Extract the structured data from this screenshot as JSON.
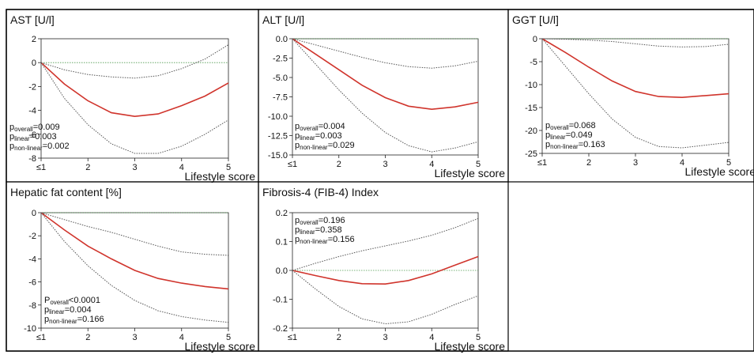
{
  "x_axis_label": "Lifestyle score",
  "x_tick_labels": [
    "≤1",
    "2",
    "3",
    "4",
    "5"
  ],
  "colors": {
    "estimate": "#d0342c",
    "ci": "#555555",
    "reference": "#4f9a4f",
    "frame": "#000000"
  },
  "chart_data": [
    {
      "type": "line",
      "title": "AST [U/l]",
      "xlabel": "Lifestyle score",
      "xlim": [
        1,
        5
      ],
      "ylim": [
        -8,
        2
      ],
      "y_ticks": [
        -8,
        -6,
        -4,
        -2,
        0,
        2
      ],
      "y_tick_labels": [
        "-8",
        "-6",
        "-4",
        "-2",
        "0",
        "2"
      ],
      "x": [
        1,
        1.5,
        2,
        2.5,
        3,
        3.5,
        4,
        4.5,
        5
      ],
      "series": [
        {
          "role": "estimate",
          "values": [
            0,
            -1.8,
            -3.2,
            -4.2,
            -4.5,
            -4.3,
            -3.6,
            -2.8,
            -1.7
          ]
        },
        {
          "role": "ci-upper",
          "values": [
            0,
            -0.6,
            -1.0,
            -1.2,
            -1.3,
            -1.1,
            -0.5,
            0.3,
            1.5
          ]
        },
        {
          "role": "ci-lower",
          "values": [
            0,
            -3.0,
            -5.2,
            -6.8,
            -7.6,
            -7.6,
            -7.0,
            -6.0,
            -4.8
          ]
        }
      ],
      "reference_line": 0,
      "pvalues": [
        {
          "prefix": "p",
          "sub": "overall",
          "value": "=0.009"
        },
        {
          "prefix": "p",
          "sub": "linear",
          "value": "=0.003"
        },
        {
          "prefix": "p",
          "sub": "non-linear",
          "value": "=0.002"
        }
      ]
    },
    {
      "type": "line",
      "title": "ALT [U/l]",
      "xlabel": "Lifestyle score",
      "xlim": [
        1,
        5
      ],
      "ylim": [
        -15,
        0
      ],
      "y_ticks": [
        -15,
        -12.5,
        -10,
        -7.5,
        -5,
        -2.5,
        0
      ],
      "y_tick_labels": [
        "-15.0",
        "-12.5",
        "-10.0",
        "-7.5",
        "-5.0",
        "-2.5",
        "0.0"
      ],
      "x": [
        1,
        1.5,
        2,
        2.5,
        3,
        3.5,
        4,
        4.5,
        5
      ],
      "series": [
        {
          "role": "estimate",
          "values": [
            0,
            -2.0,
            -4.0,
            -6.0,
            -7.6,
            -8.7,
            -9.1,
            -8.8,
            -8.2
          ]
        },
        {
          "role": "ci-upper",
          "values": [
            0,
            -0.8,
            -1.6,
            -2.4,
            -3.1,
            -3.6,
            -3.8,
            -3.5,
            -2.9
          ]
        },
        {
          "role": "ci-lower",
          "values": [
            0,
            -3.3,
            -6.6,
            -9.6,
            -12.1,
            -13.8,
            -14.6,
            -14.1,
            -13.3
          ]
        }
      ],
      "reference_line": 0,
      "pvalues": [
        {
          "prefix": "p",
          "sub": "overall",
          "value": "=0.004"
        },
        {
          "prefix": "p",
          "sub": "linear",
          "value": "=0.003"
        },
        {
          "prefix": "p",
          "sub": "non-linear",
          "value": "=0.029"
        }
      ]
    },
    {
      "type": "line",
      "title": "GGT [U/l]",
      "xlabel": "Lifestyle score",
      "xlim": [
        1,
        5
      ],
      "ylim": [
        -25,
        0
      ],
      "y_ticks": [
        -25,
        -20,
        -15,
        -10,
        -5,
        0
      ],
      "y_tick_labels": [
        "-25",
        "-20",
        "-15",
        "-10",
        "-5",
        "0"
      ],
      "x": [
        1,
        1.5,
        2,
        2.5,
        3,
        3.5,
        4,
        4.5,
        5
      ],
      "series": [
        {
          "role": "estimate",
          "values": [
            0,
            -3.0,
            -6.2,
            -9.2,
            -11.5,
            -12.6,
            -12.8,
            -12.4,
            -12.0
          ]
        },
        {
          "role": "ci-upper",
          "values": [
            0,
            -0.1,
            -0.3,
            -0.6,
            -1.1,
            -1.6,
            -1.8,
            -1.7,
            -1.2
          ]
        },
        {
          "role": "ci-lower",
          "values": [
            0,
            -6.0,
            -12.0,
            -17.5,
            -21.5,
            -23.5,
            -23.8,
            -23.2,
            -22.6
          ]
        }
      ],
      "reference_line": 0,
      "pvalues": [
        {
          "prefix": "p",
          "sub": "overall",
          "value": "=0.068"
        },
        {
          "prefix": "p",
          "sub": "linear",
          "value": "=0.049"
        },
        {
          "prefix": "p",
          "sub": "non-linear",
          "value": "=0.163"
        }
      ]
    },
    {
      "type": "line",
      "title": "Hepatic fat content [%]",
      "xlabel": "Lifestyle score",
      "xlim": [
        1,
        5
      ],
      "ylim": [
        -10,
        0
      ],
      "y_ticks": [
        -10,
        -8,
        -6,
        -4,
        -2,
        0
      ],
      "y_tick_labels": [
        "-10",
        "-8",
        "-6",
        "-4",
        "-2",
        "0"
      ],
      "x": [
        1,
        1.5,
        2,
        2.5,
        3,
        3.5,
        4,
        4.5,
        5
      ],
      "series": [
        {
          "role": "estimate",
          "values": [
            0,
            -1.5,
            -2.9,
            -4.0,
            -5.0,
            -5.7,
            -6.1,
            -6.4,
            -6.6
          ]
        },
        {
          "role": "ci-upper",
          "values": [
            0,
            -0.6,
            -1.2,
            -1.7,
            -2.3,
            -2.9,
            -3.4,
            -3.6,
            -3.7
          ]
        },
        {
          "role": "ci-lower",
          "values": [
            0,
            -2.5,
            -4.6,
            -6.3,
            -7.6,
            -8.5,
            -9.0,
            -9.3,
            -9.5
          ]
        }
      ],
      "reference_line": 0,
      "pvalues": [
        {
          "prefix": "P",
          "sub": "overall",
          "value": "<0.0001"
        },
        {
          "prefix": "p",
          "sub": "linear",
          "value": "=0.004"
        },
        {
          "prefix": "p",
          "sub": "non-linear",
          "value": "=0.166"
        }
      ]
    },
    {
      "type": "line",
      "title": "Fibrosis-4 (FIB-4) Index",
      "xlabel": "Lifestyle score",
      "xlim": [
        1,
        5
      ],
      "ylim": [
        -0.2,
        0.2
      ],
      "y_ticks": [
        -0.2,
        -0.1,
        0,
        0.1,
        0.2
      ],
      "y_tick_labels": [
        "-0.2",
        "-0.1",
        "0.0",
        "0.1",
        "0.2"
      ],
      "x": [
        1,
        1.5,
        2,
        2.5,
        3,
        3.5,
        4,
        4.5,
        5
      ],
      "series": [
        {
          "role": "estimate",
          "values": [
            0,
            -0.018,
            -0.035,
            -0.046,
            -0.047,
            -0.035,
            -0.012,
            0.018,
            0.048
          ]
        },
        {
          "role": "ci-upper",
          "values": [
            0,
            0.025,
            0.048,
            0.068,
            0.085,
            0.102,
            0.122,
            0.148,
            0.18
          ]
        },
        {
          "role": "ci-lower",
          "values": [
            0,
            -0.065,
            -0.125,
            -0.168,
            -0.185,
            -0.178,
            -0.152,
            -0.118,
            -0.088
          ]
        }
      ],
      "reference_line": 0,
      "pvalues": [
        {
          "prefix": "p",
          "sub": "overall",
          "value": "=0.196"
        },
        {
          "prefix": "p",
          "sub": "linear",
          "value": "=0.358"
        },
        {
          "prefix": "p",
          "sub": "non-linear",
          "value": "=0.156"
        }
      ]
    }
  ]
}
